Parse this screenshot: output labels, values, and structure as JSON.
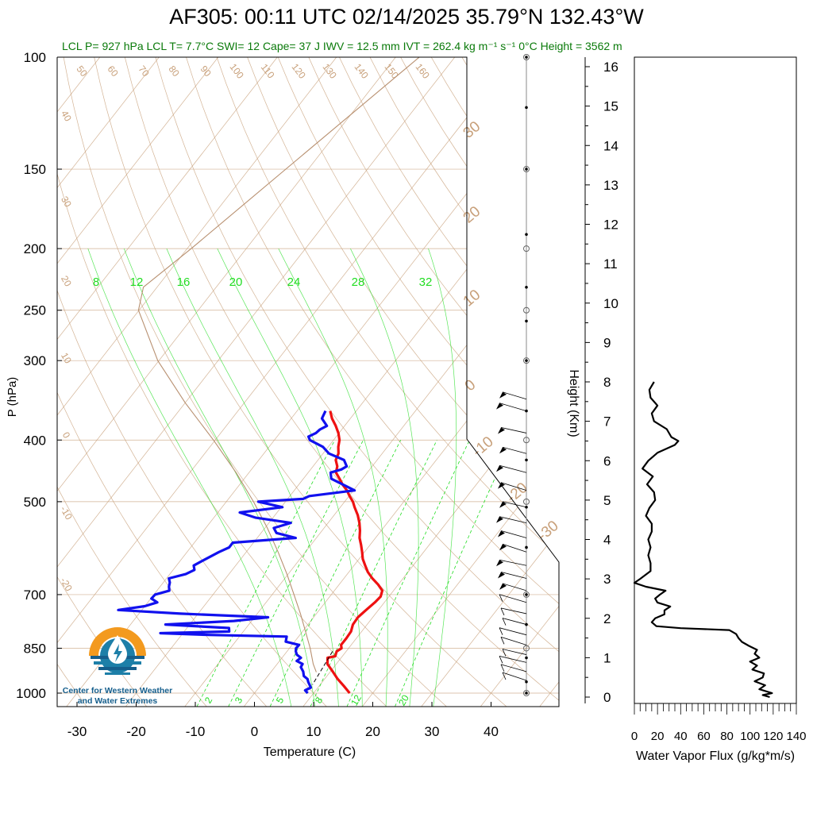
{
  "title": "AF305: 00:11 UTC 02/14/2025  35.79°N 132.43°W",
  "subtitle": "LCL P= 927 hPa  LCL T= 7.7°C  SWI= 12  Cape= 37 J  IWV = 12.5 mm  IVT = 262.4 kg m⁻¹ s⁻¹  0°C Height = 3562 m",
  "logo": {
    "line1": "Center for Western Weather",
    "line2": "and Water Extremes"
  },
  "colors": {
    "temperature": "#ee1111",
    "dewpoint": "#1111ee",
    "mixing_ratio": "#22dd22",
    "dry_adiabat": "#c8a07a",
    "isotherm": "#c8a07a",
    "isobar": "#c8a07a",
    "flux": "#000000"
  },
  "chart_data": [
    {
      "type": "line",
      "chart": "skew-T log-P sounding",
      "xlabel": "Temperature (C)",
      "ylabel": "P (hPa)",
      "xlim": [
        -35,
        50
      ],
      "ylim": [
        1050,
        100
      ],
      "y_scale": "log",
      "x_ticks": [
        -30,
        -20,
        -10,
        0,
        10,
        20,
        30,
        40
      ],
      "y_ticks": [
        100,
        150,
        200,
        250,
        300,
        400,
        500,
        700,
        850,
        1000
      ],
      "height_axis": {
        "label": "Height (Km)",
        "ticks": [
          0,
          1,
          2,
          3,
          4,
          5,
          6,
          7,
          8,
          9,
          10,
          11,
          12,
          13,
          14,
          15,
          16
        ]
      },
      "mixing_ratio_labels_top": [
        "8",
        "12",
        "16",
        "20",
        "24",
        "28",
        "32"
      ],
      "mixing_ratio_labels_bottom": [
        "2",
        "3",
        "5",
        "8",
        "12",
        "20"
      ],
      "dry_adiabat_labels_top": [
        "50",
        "60",
        "70",
        "80",
        "90",
        "100",
        "110",
        "120",
        "130",
        "140",
        "150",
        "160"
      ],
      "isotherm_labels_left": [
        "40",
        "30",
        "20",
        "10",
        "0",
        "-10",
        "-20"
      ],
      "isotherm_labels_right": [
        "30",
        "20",
        "10",
        "0",
        "-10",
        "-20",
        "-30"
      ],
      "series": [
        {
          "name": "Temperature",
          "pressure": [
            1000,
            975,
            950,
            925,
            900,
            880,
            875,
            860,
            850,
            840,
            820,
            800,
            780,
            760,
            740,
            720,
            705,
            690,
            675,
            660,
            645,
            630,
            615,
            600,
            585,
            570,
            555,
            540,
            525,
            510,
            500,
            490,
            480,
            470,
            460,
            450,
            440,
            430,
            420,
            410,
            400,
            390,
            380,
            370,
            360
          ],
          "temperature": [
            16.1,
            14.2,
            12.2,
            10.4,
            8.5,
            7.7,
            8.8,
            8.4,
            8.8,
            8.3,
            8.3,
            8.2,
            7.6,
            7.5,
            7.9,
            8.4,
            8.6,
            8.1,
            6.6,
            4.8,
            3.2,
            1.9,
            0.6,
            -0.4,
            -1.5,
            -2.7,
            -3.6,
            -4.7,
            -6.0,
            -7.6,
            -8.6,
            -9.9,
            -11.1,
            -12.6,
            -13.9,
            -15.3,
            -15.9,
            -17.0,
            -17.4,
            -18.3,
            -19.0,
            -20.1,
            -21.5,
            -23.1,
            -24.4
          ]
        },
        {
          "name": "Dewpoint",
          "pressure": [
            1000,
            990,
            980,
            960,
            950,
            940,
            925,
            910,
            900,
            890,
            880,
            870,
            860,
            850,
            840,
            830,
            815,
            810,
            805,
            800,
            790,
            780,
            770,
            760,
            750,
            740,
            730,
            720,
            710,
            700,
            690,
            680,
            670,
            660,
            650,
            640,
            630,
            620,
            600,
            590,
            580,
            570,
            560,
            550,
            540,
            530,
            520,
            510,
            500,
            495,
            490,
            480,
            470,
            460,
            450,
            445,
            440,
            430,
            420,
            410,
            400,
            395,
            390,
            385,
            380,
            370,
            360
          ],
          "dewpoint": [
            9.0,
            8.2,
            8.8,
            7.6,
            7.1,
            6.1,
            5.4,
            4.4,
            4.3,
            2.9,
            3.2,
            2.1,
            1.5,
            1.1,
            1.2,
            -1.5,
            -2.0,
            -15.4,
            -23.8,
            -12.4,
            -12.9,
            -24.1,
            -13.0,
            -7.7,
            -23.0,
            -34.0,
            -30.0,
            -28.4,
            -29.9,
            -29.8,
            -27.9,
            -28.5,
            -28.9,
            -29.6,
            -27.3,
            -26.4,
            -27.1,
            -26.3,
            -24.6,
            -23.5,
            -23.5,
            -13.5,
            -17.4,
            -18.5,
            -16.3,
            -22.9,
            -26.3,
            -19.8,
            -24.6,
            -17.4,
            -16.7,
            -9.8,
            -12.5,
            -15.3,
            -16.2,
            -14.8,
            -14.3,
            -15.6,
            -19.0,
            -20.9,
            -24.0,
            -24.7,
            -23.9,
            -23.7,
            -23.0,
            -24.8,
            -25.2
          ]
        },
        {
          "name": "Parcel",
          "pressure": [
            927,
            900,
            850,
            800,
            750,
            700,
            650,
            600,
            550,
            500,
            450,
            400,
            350,
            300,
            250,
            230,
            200,
            150,
            100
          ],
          "temperature": [
            7.7,
            6.1,
            3.5,
            0.5,
            -2.7,
            -6.3,
            -10.2,
            -14.6,
            -19.6,
            -25.4,
            -32.2,
            -40.3,
            -49.9,
            -60.2,
            -70.1,
            -72.3,
            -69.3,
            -63.8,
            -56.0
          ]
        }
      ],
      "wind_barbs": {
        "pressure": [
          955,
          925,
          895,
          870,
          840,
          810,
          780,
          750,
          720,
          690,
          660,
          630,
          600,
          570,
          540,
          510,
          480,
          450,
          420,
          390,
          360,
          345
        ]
      }
    },
    {
      "type": "line",
      "xlabel": "Water Vapor Flux (g/kg*m/s)",
      "xlim": [
        0,
        140
      ],
      "x_ticks": [
        0,
        20,
        40,
        60,
        80,
        100,
        120,
        140
      ],
      "ylim": [
        -0.2,
        16.4
      ],
      "series": [
        {
          "name": "Water Vapor Flux",
          "height_km": [
            0.0,
            0.05,
            0.1,
            0.2,
            0.3,
            0.4,
            0.5,
            0.6,
            0.7,
            0.8,
            0.9,
            1.0,
            1.1,
            1.2,
            1.3,
            1.4,
            1.5,
            1.6,
            1.7,
            1.75,
            1.8,
            1.9,
            2.0,
            2.1,
            2.2,
            2.3,
            2.4,
            2.5,
            2.6,
            2.7,
            2.8,
            2.9,
            3.0,
            3.2,
            3.4,
            3.6,
            3.8,
            4.0,
            4.2,
            4.4,
            4.6,
            4.8,
            5.0,
            5.2,
            5.4,
            5.6,
            5.8,
            6.0,
            6.2,
            6.4,
            6.5,
            6.6,
            6.8,
            7.0,
            7.2,
            7.4,
            7.6,
            7.8,
            8.0
          ],
          "flux": [
            117,
            111,
            119,
            108,
            113,
            104,
            111,
            112,
            102,
            106,
            100,
            108,
            104,
            106,
            99,
            93,
            90,
            88,
            82,
            40,
            19,
            15,
            18,
            26,
            26,
            31,
            20,
            18,
            22,
            27,
            10,
            0,
            5,
            14,
            14,
            12,
            14,
            12,
            15,
            15,
            10,
            13,
            18,
            17,
            11,
            16,
            7,
            12,
            20,
            35,
            38,
            32,
            28,
            17,
            15,
            20,
            14,
            13,
            17
          ]
        }
      ]
    }
  ]
}
